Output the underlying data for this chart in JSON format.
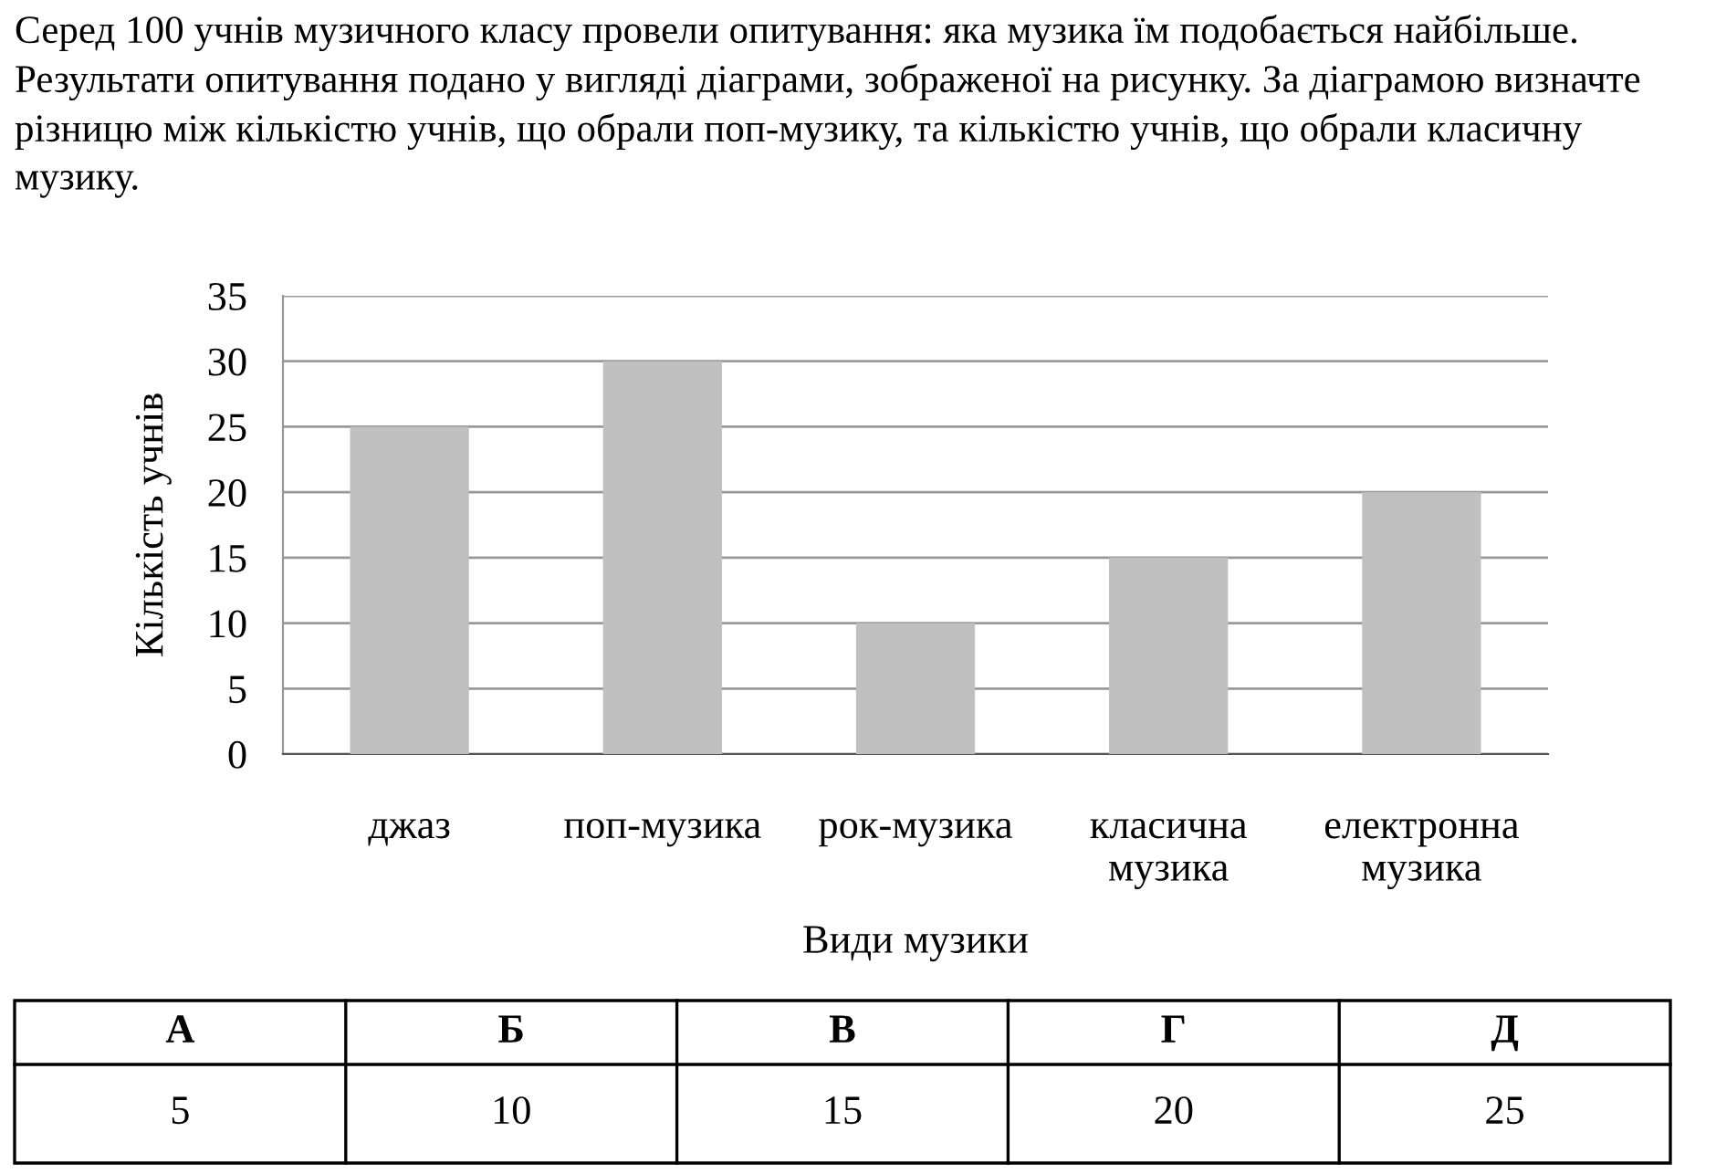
{
  "chart_data": {
    "type": "bar",
    "title": "Серед 100 учнів музичного класу провели опитування: яка музика їм подобається найбільше. Результати опитування подано у вигляді діаграми, зображеної на рисунку. За діаграмою визначте різницю між кількістю учнів, що обрали поп-музику, та кількістю учнів, що обрали класичну музику.",
    "categories": [
      "джаз",
      "поп-музика",
      "рок-музика",
      "класична\nмузика",
      "електронна\nмузика"
    ],
    "values": [
      25,
      30,
      10,
      15,
      20
    ],
    "color": "#c0c0c0",
    "ylim": [
      0,
      35
    ],
    "yticks": [
      0,
      5,
      10,
      15,
      20,
      25,
      30,
      35
    ],
    "grid": "y",
    "xlabel": "Види музики",
    "ylabel": "Кількість учнів",
    "annotations": [
      "А",
      "Б",
      "В",
      "Г",
      "Д",
      "5",
      "10",
      "15",
      "20",
      "25"
    ]
  }
}
